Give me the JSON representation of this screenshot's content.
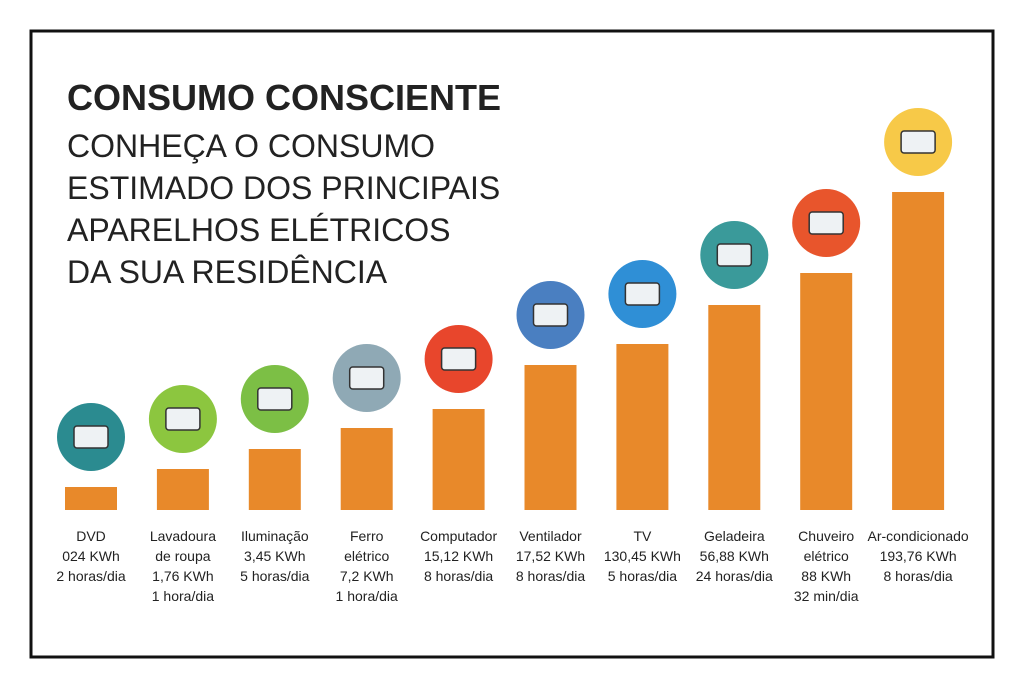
{
  "header": {
    "title": "CONSUMO CONSCIENTE",
    "subtitle_lines": [
      "CONHEÇA O CONSUMO",
      "ESTIMADO DOS PRINCIPAIS",
      "APARELHOS ELÉTRICOS",
      "DA SUA RESIDÊNCIA"
    ]
  },
  "items": [
    {
      "lines": [
        "DVD",
        "024 KWh",
        "2 horas/dia"
      ]
    },
    {
      "lines": [
        "Lavadoura",
        "de roupa",
        "1,76 KWh",
        "1 hora/dia"
      ]
    },
    {
      "lines": [
        "Iluminação",
        "3,45 KWh",
        "5 horas/dia"
      ]
    },
    {
      "lines": [
        "Ferro",
        "elétrico",
        "7,2 KWh",
        "1 hora/dia"
      ]
    },
    {
      "lines": [
        "Computador",
        "15,12 KWh",
        "8 horas/dia"
      ]
    },
    {
      "lines": [
        "Ventilador",
        "17,52 KWh",
        "8 horas/dia"
      ]
    },
    {
      "lines": [
        "TV",
        "130,45 KWh",
        "5 horas/dia"
      ]
    },
    {
      "lines": [
        "Geladeira",
        "56,88 KWh",
        "24 horas/dia"
      ]
    },
    {
      "lines": [
        "Chuveiro",
        "elétrico",
        "88 KWh",
        "32 min/dia"
      ]
    },
    {
      "lines": [
        "Ar-condicionado",
        "193,76 KWh",
        "8 horas/dia"
      ]
    }
  ]
}
